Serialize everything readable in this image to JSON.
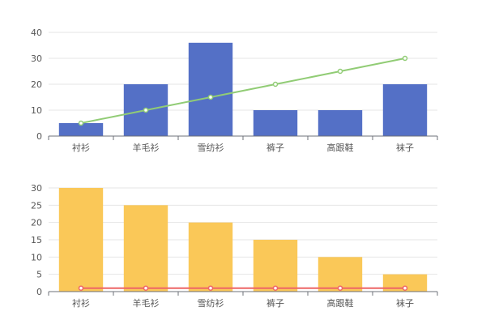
{
  "chart_data": [
    {
      "type": "bar",
      "categories": [
        "衬衫",
        "羊毛衫",
        "雪纺衫",
        "裤子",
        "高跟鞋",
        "袜子"
      ],
      "series": [
        {
          "type": "bar",
          "values": [
            5,
            20,
            36,
            10,
            10,
            20
          ],
          "color": "#5470c6"
        },
        {
          "type": "line",
          "values": [
            5,
            10,
            15,
            20,
            25,
            30
          ],
          "color": "#91cc75"
        }
      ],
      "ylim": [
        0,
        40
      ],
      "yticks": [
        0,
        10,
        20,
        30,
        40
      ],
      "grid": true
    },
    {
      "type": "bar",
      "categories": [
        "衬衫",
        "羊毛衫",
        "雪纺衫",
        "裤子",
        "高跟鞋",
        "袜子"
      ],
      "series": [
        {
          "type": "bar",
          "values": [
            30,
            25,
            20,
            15,
            10,
            5
          ],
          "color": "#fac858"
        },
        {
          "type": "line",
          "values": [
            1,
            1,
            1,
            1,
            1,
            1
          ],
          "color": "#ee6666"
        }
      ],
      "ylim": [
        0,
        30
      ],
      "yticks": [
        0,
        5,
        10,
        15,
        20,
        25,
        30
      ],
      "grid": true
    }
  ]
}
